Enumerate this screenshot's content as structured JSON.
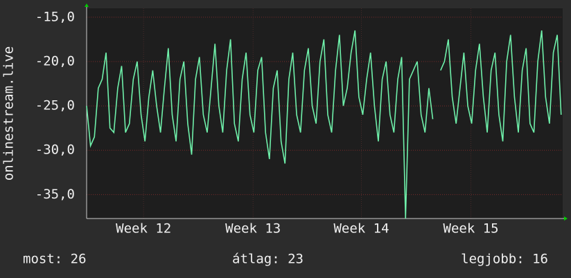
{
  "chart_data": {
    "type": "line",
    "y_label": "onlinestream.live",
    "x": [
      0,
      0.25,
      0.5,
      0.75,
      1,
      1.25,
      1.5,
      1.75,
      2,
      2.25,
      2.5,
      2.75,
      3,
      3.25,
      3.5,
      3.75,
      4,
      4.25,
      4.5,
      4.75,
      5,
      5.25,
      5.5,
      5.75,
      6,
      6.25,
      6.5,
      6.75,
      7,
      7.25,
      7.5,
      7.75,
      8,
      8.25,
      8.5,
      8.75,
      9,
      9.25,
      9.5,
      9.75,
      10,
      10.25,
      10.5,
      10.75,
      11,
      11.25,
      11.5,
      11.75,
      12,
      12.25,
      12.5,
      12.75,
      13,
      13.25,
      13.5,
      13.75,
      14,
      14.25,
      14.5,
      14.75,
      15,
      15.25,
      15.5,
      15.75,
      16,
      16.25,
      16.5,
      16.75,
      17,
      17.25,
      17.5,
      17.75,
      18,
      18.25,
      18.5,
      18.75,
      19,
      19.25,
      19.5,
      19.75,
      20,
      20.25,
      20.5,
      20.75,
      21,
      21.25,
      21.5,
      21.75,
      22,
      22.25,
      22.5,
      22.75,
      23,
      23.25,
      23.5,
      23.75,
      24,
      24.25,
      24.5,
      24.75,
      25,
      25.25,
      25.5,
      25.75,
      26,
      26.25,
      26.5,
      26.75,
      27,
      27.25,
      27.5,
      27.75,
      28,
      28.25,
      28.5,
      28.75,
      29,
      29.25,
      29.5,
      29.75,
      30,
      30.25,
      30.5
    ],
    "series": [
      {
        "color": "#6ff0aa",
        "values": [
          -25,
          -29.5,
          -28.5,
          -23,
          -22,
          -19,
          -27.5,
          -28,
          -23,
          -20.5,
          -28,
          -27,
          -22,
          -20,
          -26,
          -29,
          -24,
          -21,
          -25,
          -28,
          -23,
          -18.5,
          -26,
          -29,
          -22,
          -20,
          -27,
          -30.5,
          -22,
          -19.5,
          -26,
          -28,
          -23,
          -18,
          -25,
          -28,
          -21,
          -17.5,
          -27,
          -29,
          -22,
          -19,
          -26,
          -28,
          -21,
          -19.5,
          -28,
          -31,
          -23,
          -21,
          -29,
          -31.5,
          -22,
          -19,
          -26,
          -28,
          -21,
          -18.5,
          -25,
          -27,
          -20,
          -17.5,
          -26,
          -28,
          -21,
          -17,
          -25,
          -23,
          -19,
          -16.5,
          -24,
          -26,
          -22,
          -19,
          -25,
          -29,
          -22,
          -20,
          -26,
          -28,
          -22,
          -19.5,
          -37.7,
          -22,
          -21,
          -20,
          -26,
          -28,
          -23,
          -26.5,
          null,
          -21,
          -20,
          -17.5,
          -24,
          -27,
          -23,
          -19,
          -25,
          -27,
          -21,
          -18,
          -24,
          -28,
          -21,
          -19,
          -26,
          -29,
          -20,
          -17,
          -24,
          -28,
          -21,
          -18.5,
          -27,
          -28,
          -20,
          -16.5,
          -24,
          -27,
          -19,
          -17,
          -26
        ]
      }
    ],
    "xlim": [
      0,
      30.6
    ],
    "xticks": [
      {
        "value": 3.66,
        "label": "Week 12"
      },
      {
        "value": 10.7,
        "label": "Week 13"
      },
      {
        "value": 17.66,
        "label": "Week 14"
      },
      {
        "value": 24.7,
        "label": "Week 15"
      }
    ],
    "ylim": [
      -37.7,
      -14
    ],
    "yticks": [
      {
        "value": -15,
        "label": "-15,0"
      },
      {
        "value": -20,
        "label": "-20,0"
      },
      {
        "value": -25,
        "label": "-25,0"
      },
      {
        "value": -30,
        "label": "-30,0"
      },
      {
        "value": -35,
        "label": "-35,0"
      }
    ],
    "grid": true,
    "footer": {
      "current": "most: 26",
      "average": "átlag: 23",
      "best": "legjobb: 16"
    }
  }
}
